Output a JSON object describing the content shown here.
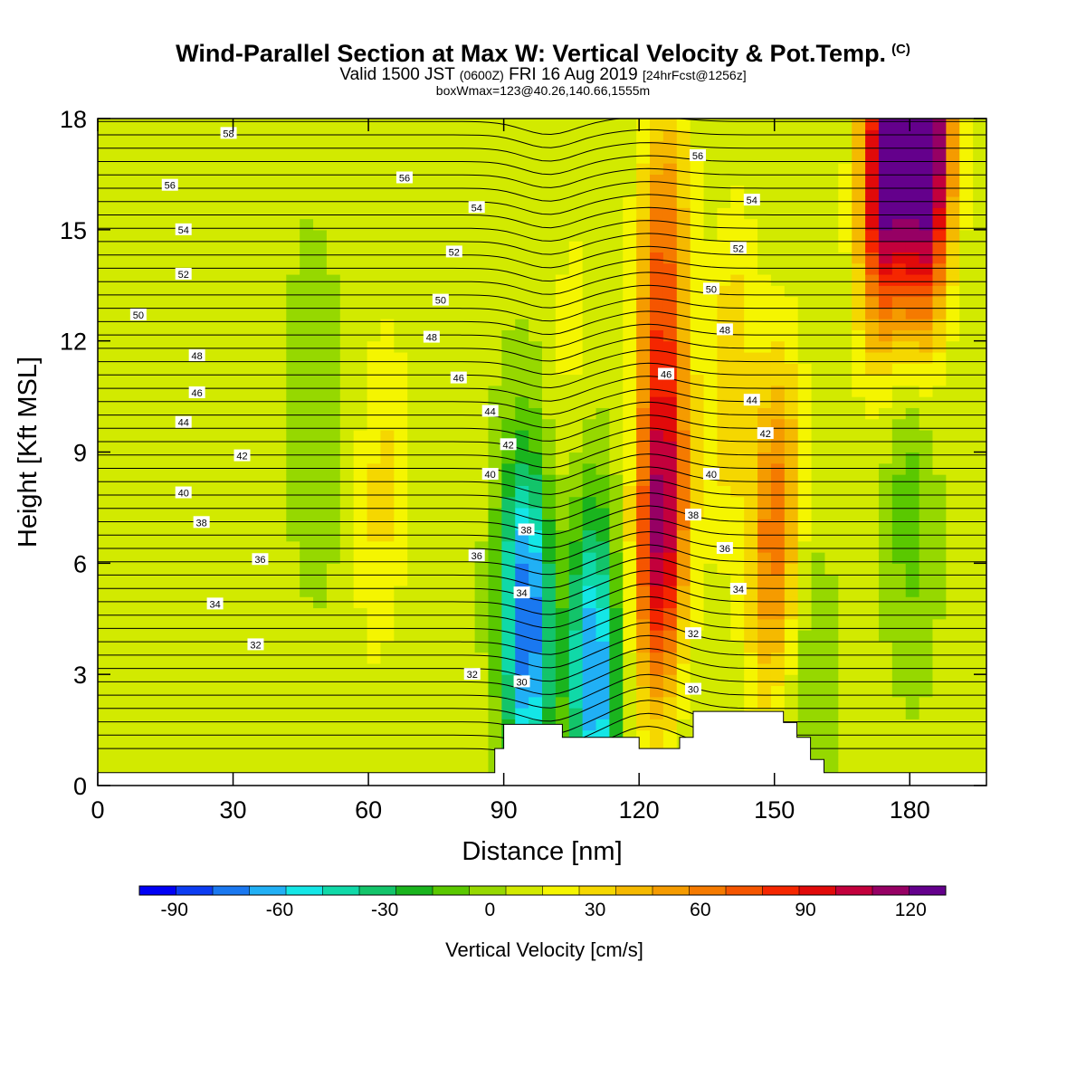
{
  "header": {
    "title": "Wind-Parallel Section at Max W: Vertical Velocity & Pot.Temp.",
    "copyright": "(C)",
    "valid_main": "Valid 1500 JST",
    "valid_utc": "(0600Z)",
    "valid_date": "FRI 16 Aug 2019",
    "forecast_info": "[24hrFcst@1256z]",
    "box_info": "boxWmax=123@40.26,140.66,1555m"
  },
  "chart_data": {
    "type": "contour",
    "xlabel": "Distance [nm]",
    "ylabel": "Height [Kft MSL]",
    "xlim": [
      0,
      197
    ],
    "ylim": [
      0,
      18
    ],
    "x_ticks": [
      "0",
      "30",
      "60",
      "90",
      "120",
      "150",
      "180"
    ],
    "y_ticks": [
      "0",
      "3",
      "6",
      "9",
      "12",
      "15",
      "18"
    ],
    "colorbar": {
      "title": "Vertical Velocity [cm/s]",
      "range": [
        -100,
        130
      ],
      "step": 10,
      "tick_labels": [
        "-90",
        "-60",
        "-30",
        "0",
        "30",
        "60",
        "90",
        "120"
      ],
      "colors": [
        "#0000f5",
        "#0c3cf2",
        "#1a78f0",
        "#21b0f5",
        "#14e6e6",
        "#10d9a8",
        "#13c46a",
        "#1ab41e",
        "#5ac800",
        "#96d800",
        "#d2ea00",
        "#f5f500",
        "#f5d700",
        "#f5b900",
        "#f59b00",
        "#f57a00",
        "#f55500",
        "#f52600",
        "#e10a0a",
        "#c3003c",
        "#960064",
        "#64008c"
      ]
    },
    "vertical_velocity_features_cm_s": [
      {
        "x": 48,
        "y": 10,
        "w": -12
      },
      {
        "x": 63,
        "y": 8,
        "w": 20
      },
      {
        "x": 95,
        "y": 4.5,
        "w": -85
      },
      {
        "x": 105,
        "y": 12,
        "w": 10
      },
      {
        "x": 110,
        "y": 3,
        "w": -75
      },
      {
        "x": 125,
        "y": 7,
        "w": 100
      },
      {
        "x": 125,
        "y": 14,
        "w": 55
      },
      {
        "x": 150,
        "y": 7,
        "w": 55
      },
      {
        "x": 140,
        "y": 11,
        "w": 25
      },
      {
        "x": 158,
        "y": 3,
        "w": -10
      },
      {
        "x": 175,
        "y": 17,
        "w": 120
      },
      {
        "x": 184,
        "y": 17,
        "w": 123
      },
      {
        "x": 180,
        "y": 8,
        "w": -20
      }
    ],
    "theta_contour_labels": [
      {
        "text": "30",
        "x": 94,
        "y": 2.8
      },
      {
        "text": "30",
        "x": 132,
        "y": 2.6
      },
      {
        "text": "32",
        "x": 35,
        "y": 3.8
      },
      {
        "text": "32",
        "x": 83,
        "y": 3.0
      },
      {
        "text": "32",
        "x": 132,
        "y": 4.1
      },
      {
        "text": "34",
        "x": 26,
        "y": 4.9
      },
      {
        "text": "34",
        "x": 94,
        "y": 5.2
      },
      {
        "text": "34",
        "x": 142,
        "y": 5.3
      },
      {
        "text": "36",
        "x": 36,
        "y": 6.1
      },
      {
        "text": "36",
        "x": 84,
        "y": 6.2
      },
      {
        "text": "36",
        "x": 139,
        "y": 6.4
      },
      {
        "text": "38",
        "x": 23,
        "y": 7.1
      },
      {
        "text": "38",
        "x": 95,
        "y": 6.9
      },
      {
        "text": "38",
        "x": 132,
        "y": 7.3
      },
      {
        "text": "40",
        "x": 19,
        "y": 7.9
      },
      {
        "text": "40",
        "x": 87,
        "y": 8.4
      },
      {
        "text": "40",
        "x": 136,
        "y": 8.4
      },
      {
        "text": "42",
        "x": 32,
        "y": 8.9
      },
      {
        "text": "42",
        "x": 91,
        "y": 9.2
      },
      {
        "text": "42",
        "x": 148,
        "y": 9.5
      },
      {
        "text": "44",
        "x": 19,
        "y": 9.8
      },
      {
        "text": "44",
        "x": 87,
        "y": 10.1
      },
      {
        "text": "44",
        "x": 145,
        "y": 10.4
      },
      {
        "text": "46",
        "x": 22,
        "y": 10.6
      },
      {
        "text": "46",
        "x": 80,
        "y": 11.0
      },
      {
        "text": "46",
        "x": 126,
        "y": 11.1
      },
      {
        "text": "48",
        "x": 22,
        "y": 11.6
      },
      {
        "text": "48",
        "x": 74,
        "y": 12.1
      },
      {
        "text": "48",
        "x": 139,
        "y": 12.3
      },
      {
        "text": "50",
        "x": 9,
        "y": 12.7
      },
      {
        "text": "50",
        "x": 76,
        "y": 13.1
      },
      {
        "text": "50",
        "x": 136,
        "y": 13.4
      },
      {
        "text": "52",
        "x": 19,
        "y": 13.8
      },
      {
        "text": "52",
        "x": 79,
        "y": 14.4
      },
      {
        "text": "52",
        "x": 142,
        "y": 14.5
      },
      {
        "text": "54",
        "x": 19,
        "y": 15.0
      },
      {
        "text": "54",
        "x": 84,
        "y": 15.6
      },
      {
        "text": "54",
        "x": 145,
        "y": 15.8
      },
      {
        "text": "56",
        "x": 16,
        "y": 16.2
      },
      {
        "text": "56",
        "x": 68,
        "y": 16.4
      },
      {
        "text": "56",
        "x": 133,
        "y": 17.0
      },
      {
        "text": "58",
        "x": 29,
        "y": 17.6
      }
    ],
    "terrain": [
      [
        0,
        0.35
      ],
      [
        88,
        0.35
      ],
      [
        88,
        1.0
      ],
      [
        90,
        1.0
      ],
      [
        90,
        1.65
      ],
      [
        103,
        1.65
      ],
      [
        103,
        1.3
      ],
      [
        120,
        1.3
      ],
      [
        120,
        1.0
      ],
      [
        129,
        1.0
      ],
      [
        129,
        1.3
      ],
      [
        132,
        1.3
      ],
      [
        132,
        2.0
      ],
      [
        152,
        2.0
      ],
      [
        152,
        1.7
      ],
      [
        155,
        1.7
      ],
      [
        155,
        1.3
      ],
      [
        158,
        1.3
      ],
      [
        158,
        0.7
      ],
      [
        161,
        0.7
      ],
      [
        161,
        0.35
      ],
      [
        197,
        0.35
      ]
    ]
  }
}
